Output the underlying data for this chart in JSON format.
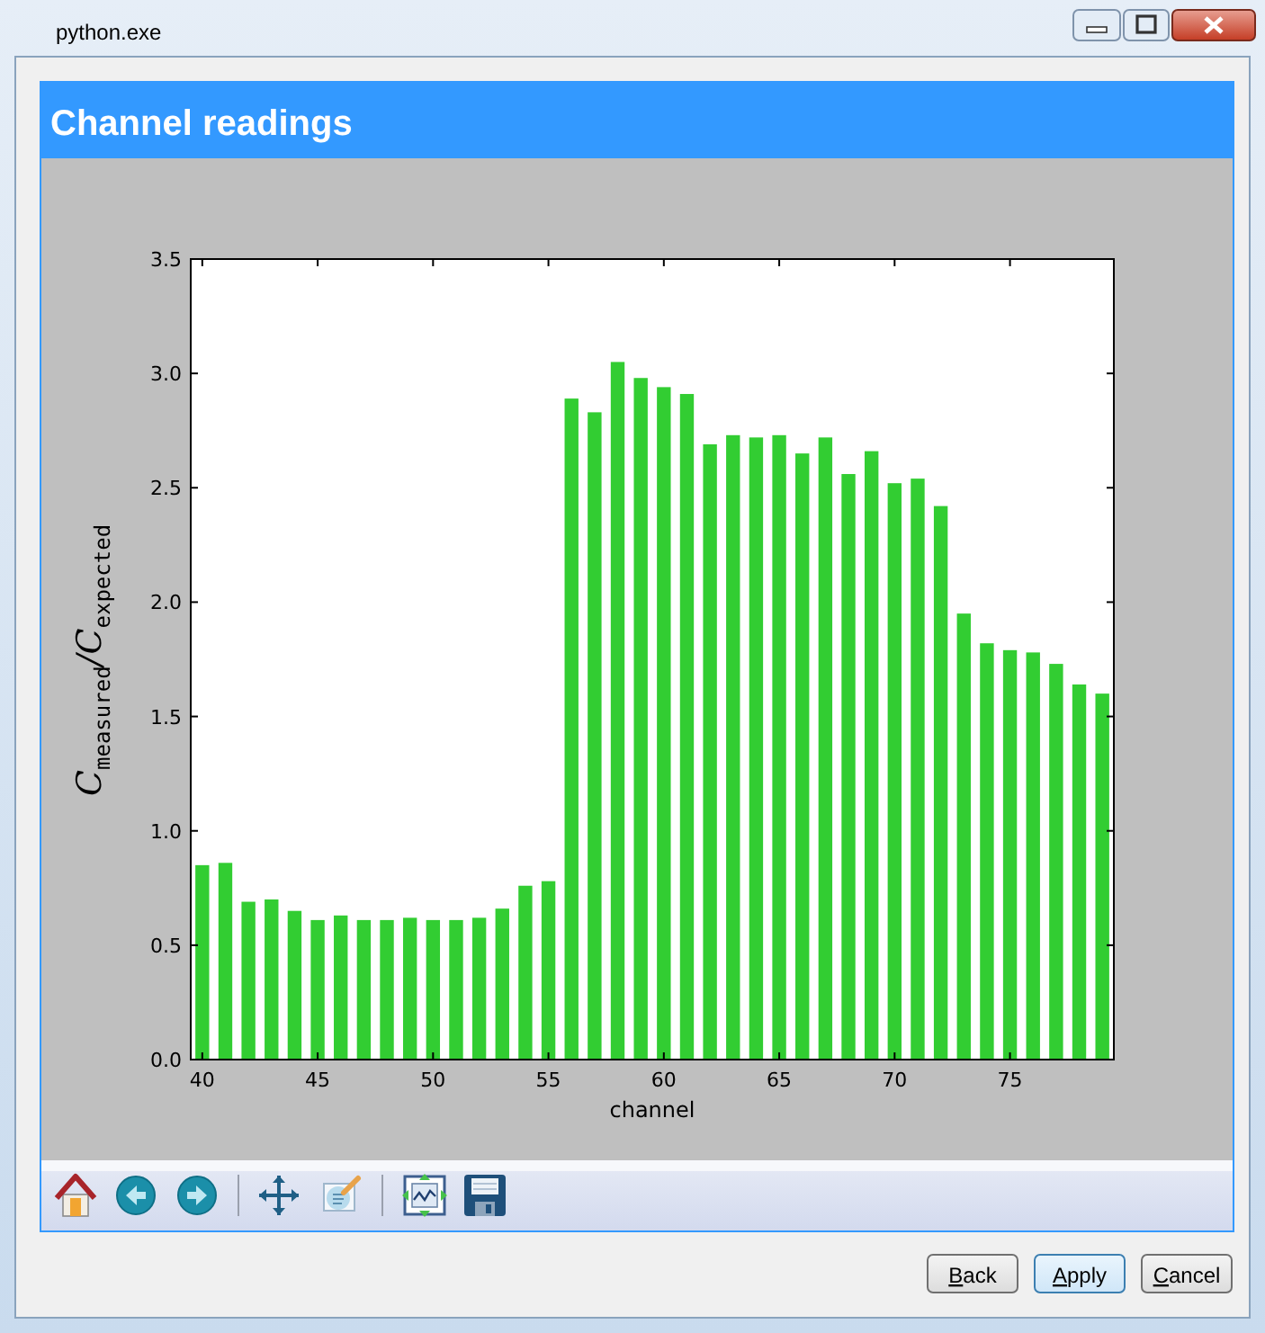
{
  "chart_data": {
    "type": "bar",
    "title": "Channel readings",
    "xlabel": "channel",
    "ylabel": "C$_{measured}$/C$_{expected}$",
    "x": [
      40,
      41,
      42,
      43,
      44,
      45,
      46,
      47,
      48,
      49,
      50,
      51,
      52,
      53,
      54,
      55,
      56,
      57,
      58,
      59,
      60,
      61,
      62,
      63,
      64,
      65,
      66,
      67,
      68,
      69,
      70,
      71,
      72,
      73,
      74,
      75,
      76,
      77,
      78,
      79
    ],
    "values": [
      0.85,
      0.86,
      0.69,
      0.7,
      0.65,
      0.61,
      0.63,
      0.61,
      0.61,
      0.62,
      0.61,
      0.61,
      0.62,
      0.66,
      0.76,
      0.78,
      2.89,
      2.83,
      3.05,
      2.98,
      2.94,
      2.91,
      2.69,
      2.73,
      2.72,
      2.73,
      2.65,
      2.72,
      2.56,
      2.66,
      2.52,
      2.54,
      2.42,
      1.95,
      1.82,
      1.79,
      1.78,
      1.73,
      1.64,
      1.6
    ],
    "color": "#32cd32",
    "xlim": [
      39.5,
      79.5
    ],
    "ylim": [
      0,
      3.5
    ],
    "xticks": [
      40,
      45,
      50,
      55,
      60,
      65,
      70,
      75
    ],
    "yticks": [
      {
        "value": 0,
        "label": "0.0"
      },
      0.5,
      {
        "value": 1,
        "label": "1.0"
      },
      1.5,
      {
        "value": 2,
        "label": "2.0"
      },
      2.5,
      {
        "value": 3,
        "label": "3.0"
      },
      3.5
    ],
    "annotations": [
      "python.exe",
      "Back",
      "Apply",
      "Cancel"
    ]
  }
}
